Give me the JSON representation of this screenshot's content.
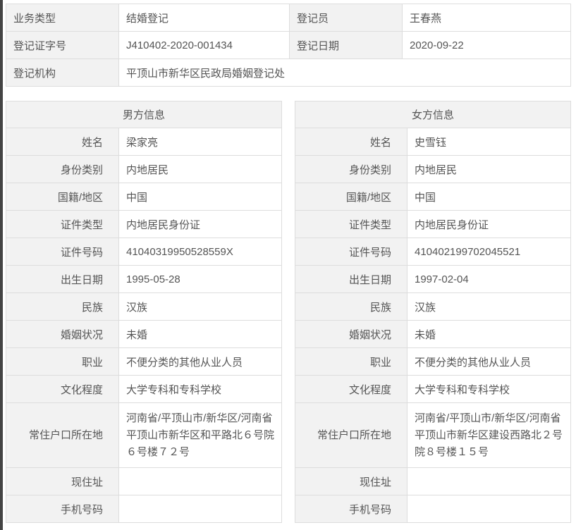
{
  "registration": {
    "business_type_label": "业务类型",
    "business_type": "结婚登记",
    "registrar_label": "登记员",
    "registrar": "王春燕",
    "cert_no_label": "登记证字号",
    "cert_no": "J410402-2020-001434",
    "date_label": "登记日期",
    "date": "2020-09-22",
    "office_label": "登记机构",
    "office": "平顶山市新华区民政局婚姻登记处"
  },
  "male": {
    "title": "男方信息",
    "rows": [
      {
        "label": "姓名",
        "value": "梁家亮"
      },
      {
        "label": "身份类别",
        "value": "内地居民"
      },
      {
        "label": "国籍/地区",
        "value": "中国"
      },
      {
        "label": "证件类型",
        "value": "内地居民身份证"
      },
      {
        "label": "证件号码",
        "value": "41040319950528559X"
      },
      {
        "label": "出生日期",
        "value": "1995-05-28"
      },
      {
        "label": "民族",
        "value": "汉族"
      },
      {
        "label": "婚姻状况",
        "value": "未婚"
      },
      {
        "label": "职业",
        "value": "不便分类的其他从业人员"
      },
      {
        "label": "文化程度",
        "value": "大学专科和专科学校"
      },
      {
        "label": "常住户口所在地",
        "value": "河南省/平顶山市/新华区/河南省平顶山市新华区和平路北６号院６号楼７２号"
      },
      {
        "label": "现住址",
        "value": ""
      },
      {
        "label": "手机号码",
        "value": ""
      }
    ]
  },
  "female": {
    "title": "女方信息",
    "rows": [
      {
        "label": "姓名",
        "value": "史雪钰"
      },
      {
        "label": "身份类别",
        "value": "内地居民"
      },
      {
        "label": "国籍/地区",
        "value": "中国"
      },
      {
        "label": "证件类型",
        "value": "内地居民身份证"
      },
      {
        "label": "证件号码",
        "value": "410402199702045521"
      },
      {
        "label": "出生日期",
        "value": "1997-02-04"
      },
      {
        "label": "民族",
        "value": "汉族"
      },
      {
        "label": "婚姻状况",
        "value": "未婚"
      },
      {
        "label": "职业",
        "value": "不便分类的其他从业人员"
      },
      {
        "label": "文化程度",
        "value": "大学专科和专科学校"
      },
      {
        "label": "常住户口所在地",
        "value": "河南省/平顶山市/新华区/河南省平顶山市新华区建设西路北２号院８号楼１５号"
      },
      {
        "label": "现住址",
        "value": ""
      },
      {
        "label": "手机号码",
        "value": ""
      }
    ]
  }
}
